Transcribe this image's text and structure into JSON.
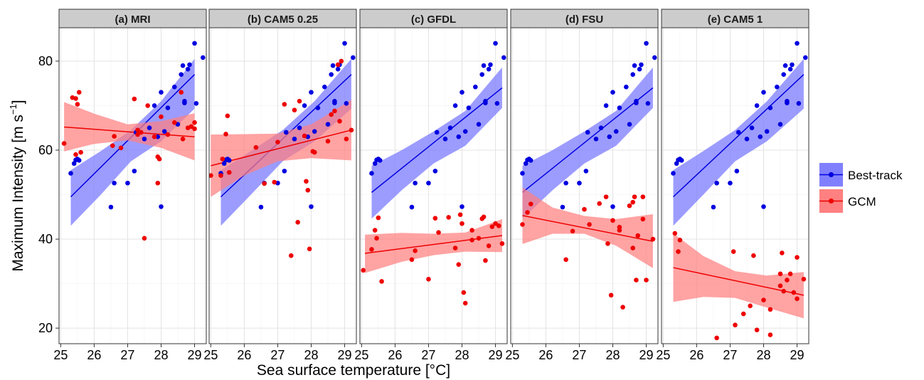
{
  "chart_data": {
    "type": "scatter",
    "xlabel": "Sea surface temperature [°C]",
    "ylabel": {
      "main": "Maximum Intensity [m s",
      "sup": "−1",
      "end": "]"
    },
    "xlim": [
      24.95,
      29.35
    ],
    "ylim": [
      16.5,
      87.5
    ],
    "x_ticks": [
      25,
      26,
      27,
      28,
      29
    ],
    "y_ticks": [
      20,
      40,
      60,
      80
    ],
    "grid": true,
    "legend_position": "right",
    "legend": [
      {
        "name": "Best-track",
        "color": "#0000e0",
        "band_color": "#8080ff"
      },
      {
        "name": "GCM",
        "color": "#ee0000",
        "band_color": "#ff8080"
      }
    ],
    "best_track_points": [
      [
        25.3,
        54.8
      ],
      [
        25.4,
        57.0
      ],
      [
        25.45,
        57.8
      ],
      [
        25.5,
        58.0
      ],
      [
        25.55,
        57.7
      ],
      [
        26.5,
        47.2
      ],
      [
        26.6,
        52.6
      ],
      [
        27.0,
        52.6
      ],
      [
        27.2,
        55.3
      ],
      [
        27.25,
        64.0
      ],
      [
        27.5,
        62.5
      ],
      [
        27.65,
        65.0
      ],
      [
        27.8,
        70.0
      ],
      [
        27.9,
        63.0
      ],
      [
        28.0,
        73.0
      ],
      [
        28.1,
        64.2
      ],
      [
        28.2,
        69.5
      ],
      [
        28.4,
        74.2
      ],
      [
        28.5,
        65.8
      ],
      [
        28.6,
        77.0
      ],
      [
        28.65,
        79.0
      ],
      [
        28.7,
        71.0
      ],
      [
        28.7,
        70.6
      ],
      [
        28.8,
        78.2
      ],
      [
        28.85,
        79.2
      ],
      [
        29.0,
        84.0
      ],
      [
        29.05,
        70.5
      ],
      [
        28.0,
        47.3
      ],
      [
        29.25,
        80.8
      ]
    ],
    "panels": [
      {
        "title": "(a) MRI",
        "best_fit": {
          "x": [
            25.3,
            29.0
          ],
          "y": [
            49.5,
            77.0
          ]
        },
        "best_band": {
          "x": [
            25.3,
            26.2,
            27.1,
            28.0,
            29.0
          ],
          "upper": [
            55.5,
            59.8,
            64.5,
            71.0,
            80.5
          ],
          "lower": [
            43.0,
            50.0,
            57.5,
            62.0,
            69.3
          ]
        },
        "gcm_fit": {
          "x": [
            25.1,
            29.0
          ],
          "y": [
            65.2,
            63.0
          ]
        },
        "gcm_band": {
          "x": [
            25.1,
            26.0,
            27.0,
            28.0,
            29.0
          ],
          "upper": [
            70.8,
            68.2,
            65.8,
            66.5,
            68.3
          ],
          "lower": [
            59.7,
            61.4,
            62.2,
            60.5,
            57.7
          ]
        },
        "gcm_points": [
          [
            25.1,
            61.5
          ],
          [
            25.35,
            71.8
          ],
          [
            25.45,
            71.6
          ],
          [
            25.55,
            73.0
          ],
          [
            25.5,
            70.3
          ],
          [
            25.45,
            59.0
          ],
          [
            25.6,
            59.5
          ],
          [
            26.6,
            63.1
          ],
          [
            26.55,
            61.0
          ],
          [
            26.8,
            60.5
          ],
          [
            27.2,
            71.5
          ],
          [
            27.3,
            64.5
          ],
          [
            27.3,
            63.5
          ],
          [
            27.4,
            64.0
          ],
          [
            27.5,
            40.2
          ],
          [
            27.6,
            70.0
          ],
          [
            27.8,
            63.0
          ],
          [
            27.9,
            58.5
          ],
          [
            27.95,
            58.0
          ],
          [
            28.0,
            67.5
          ],
          [
            28.2,
            63.5
          ],
          [
            27.9,
            52.6
          ],
          [
            28.4,
            66.2
          ],
          [
            28.6,
            73.0
          ],
          [
            28.65,
            62.5
          ],
          [
            28.8,
            65.0
          ],
          [
            28.9,
            65.3
          ],
          [
            29.0,
            66.2
          ],
          [
            29.0,
            64.8
          ]
        ]
      },
      {
        "title": "(b) CAM5 0.25",
        "best_fit": {
          "x": [
            25.3,
            29.2
          ],
          "y": [
            49.5,
            77.0
          ]
        },
        "best_band": {
          "x": [
            25.3,
            26.2,
            27.15,
            28.1,
            29.2
          ],
          "upper": [
            55.5,
            59.8,
            64.5,
            71.0,
            80.5
          ],
          "lower": [
            43.0,
            50.0,
            57.5,
            62.0,
            69.3
          ]
        },
        "gcm_fit": {
          "x": [
            25.0,
            29.2
          ],
          "y": [
            56.5,
            64.5
          ]
        },
        "gcm_band": {
          "x": [
            25.0,
            26.0,
            27.0,
            28.0,
            29.2
          ],
          "upper": [
            63.5,
            63.6,
            63.7,
            65.8,
            71.3
          ],
          "lower": [
            49.5,
            54.3,
            57.5,
            58.2,
            57.7
          ]
        },
        "gcm_points": [
          [
            25.0,
            54.3
          ],
          [
            25.3,
            54.3
          ],
          [
            25.35,
            58.0
          ],
          [
            25.45,
            63.6
          ],
          [
            25.5,
            67.7
          ],
          [
            25.55,
            55.0
          ],
          [
            26.35,
            60.6
          ],
          [
            26.6,
            52.5
          ],
          [
            26.9,
            52.8
          ],
          [
            27.0,
            61.8
          ],
          [
            27.4,
            36.3
          ],
          [
            27.5,
            69.0
          ],
          [
            27.6,
            43.8
          ],
          [
            27.65,
            71.0
          ],
          [
            27.8,
            63.2
          ],
          [
            27.85,
            53.0
          ],
          [
            27.9,
            51.0
          ],
          [
            27.95,
            37.8
          ],
          [
            28.05,
            59.7
          ],
          [
            28.1,
            59.5
          ],
          [
            28.5,
            62.0
          ],
          [
            28.6,
            68.0
          ],
          [
            28.7,
            68.8
          ],
          [
            28.8,
            79.2
          ],
          [
            28.9,
            80.0
          ],
          [
            29.05,
            62.5
          ],
          [
            29.2,
            64.5
          ],
          [
            27.2,
            70.3
          ],
          [
            28.85,
            66.5
          ]
        ]
      },
      {
        "title": "(c) GFDL",
        "best_fit": {
          "x": [
            25.3,
            29.2
          ],
          "y": [
            50.5,
            74.0
          ]
        },
        "best_band": {
          "x": [
            25.3,
            26.2,
            27.15,
            28.1,
            29.2
          ],
          "upper": [
            56.5,
            60.0,
            64.2,
            68.8,
            78.6
          ],
          "lower": [
            44.6,
            51.0,
            57.0,
            61.0,
            69.5
          ]
        },
        "gcm_fit": {
          "x": [
            25.1,
            29.2
          ],
          "y": [
            36.8,
            40.8
          ]
        },
        "gcm_band": {
          "x": [
            25.1,
            26.2,
            27.15,
            28.1,
            29.2
          ],
          "upper": [
            41.0,
            41.4,
            41.2,
            41.5,
            44.5
          ],
          "lower": [
            32.4,
            34.9,
            36.4,
            37.2,
            37.1
          ]
        },
        "gcm_points": [
          [
            25.05,
            33.0
          ],
          [
            25.3,
            37.7
          ],
          [
            25.4,
            42.0
          ],
          [
            25.5,
            44.8
          ],
          [
            25.6,
            30.5
          ],
          [
            25.45,
            40.2
          ],
          [
            26.5,
            35.4
          ],
          [
            26.6,
            37.4
          ],
          [
            27.0,
            31.0
          ],
          [
            27.2,
            44.7
          ],
          [
            27.3,
            41.5
          ],
          [
            27.6,
            44.9
          ],
          [
            27.8,
            38.0
          ],
          [
            27.9,
            34.3
          ],
          [
            27.95,
            45.5
          ],
          [
            28.0,
            43.5
          ],
          [
            28.05,
            28.0
          ],
          [
            28.1,
            25.6
          ],
          [
            28.3,
            42.0
          ],
          [
            28.3,
            39.8
          ],
          [
            28.6,
            44.6
          ],
          [
            28.65,
            45.0
          ],
          [
            28.7,
            35.2
          ],
          [
            28.8,
            38.5
          ],
          [
            28.9,
            42.8
          ],
          [
            29.0,
            43.5
          ],
          [
            29.1,
            43.0
          ],
          [
            29.2,
            39.0
          ],
          [
            28.5,
            40.2
          ]
        ]
      },
      {
        "title": "(d) FSU",
        "best_fit": {
          "x": [
            25.3,
            29.2
          ],
          "y": [
            50.5,
            74.0
          ]
        },
        "best_band": {
          "x": [
            25.3,
            26.2,
            27.15,
            28.1,
            29.2
          ],
          "upper": [
            56.5,
            60.0,
            64.2,
            68.8,
            78.6
          ],
          "lower": [
            44.6,
            51.0,
            57.0,
            61.0,
            69.5
          ]
        },
        "gcm_fit": {
          "x": [
            25.3,
            29.2
          ],
          "y": [
            45.3,
            39.5
          ]
        },
        "gcm_band": {
          "x": [
            25.3,
            26.2,
            27.15,
            28.1,
            29.2
          ],
          "upper": [
            51.6,
            47.1,
            45.2,
            44.5,
            45.6
          ],
          "lower": [
            38.9,
            41.2,
            41.2,
            38.5,
            33.5
          ]
        },
        "gcm_points": [
          [
            25.3,
            43.3
          ],
          [
            25.45,
            46.0
          ],
          [
            25.55,
            47.9
          ],
          [
            26.6,
            35.4
          ],
          [
            26.8,
            41.8
          ],
          [
            27.15,
            46.7
          ],
          [
            27.3,
            43.3
          ],
          [
            27.6,
            48.0
          ],
          [
            27.8,
            49.5
          ],
          [
            27.85,
            39.0
          ],
          [
            27.95,
            27.4
          ],
          [
            28.0,
            44.2
          ],
          [
            28.2,
            42.7
          ],
          [
            28.3,
            24.7
          ],
          [
            28.5,
            47.5
          ],
          [
            28.6,
            48.3
          ],
          [
            28.65,
            49.5
          ],
          [
            28.7,
            30.8
          ],
          [
            28.75,
            40.8
          ],
          [
            28.9,
            44.5
          ],
          [
            28.9,
            49.5
          ],
          [
            29.0,
            30.8
          ],
          [
            29.2,
            40.0
          ],
          [
            28.6,
            38.0
          ],
          [
            28.2,
            42.0
          ]
        ]
      },
      {
        "title": "(e) CAM5 1",
        "best_fit": {
          "x": [
            25.3,
            29.2
          ],
          "y": [
            49.5,
            77.0
          ]
        },
        "best_band": {
          "x": [
            25.3,
            26.2,
            27.15,
            28.1,
            29.2
          ],
          "upper": [
            55.5,
            59.8,
            64.5,
            71.0,
            80.5
          ],
          "lower": [
            43.0,
            50.0,
            57.5,
            62.0,
            69.3
          ]
        },
        "gcm_fit": {
          "x": [
            25.3,
            29.2
          ],
          "y": [
            33.6,
            27.4
          ]
        },
        "gcm_band": {
          "x": [
            25.3,
            26.2,
            27.15,
            28.1,
            29.2
          ],
          "upper": [
            41.3,
            36.2,
            32.8,
            31.8,
            32.6
          ],
          "lower": [
            25.9,
            27.0,
            26.8,
            24.6,
            22.2
          ]
        },
        "gcm_points": [
          [
            25.35,
            41.3
          ],
          [
            25.45,
            37.2
          ],
          [
            25.5,
            39.8
          ],
          [
            26.6,
            17.8
          ],
          [
            27.1,
            37.2
          ],
          [
            27.15,
            20.7
          ],
          [
            27.4,
            23.2
          ],
          [
            27.6,
            25.0
          ],
          [
            27.8,
            19.6
          ],
          [
            27.7,
            36.3
          ],
          [
            28.0,
            26.3
          ],
          [
            28.2,
            18.5
          ],
          [
            28.2,
            24.2
          ],
          [
            28.5,
            32.2
          ],
          [
            28.55,
            36.9
          ],
          [
            28.6,
            28.3
          ],
          [
            28.7,
            30.8
          ],
          [
            28.8,
            32.2
          ],
          [
            28.9,
            28.0
          ],
          [
            29.0,
            26.6
          ],
          [
            29.0,
            35.9
          ],
          [
            29.2,
            31.0
          ],
          [
            28.5,
            29.5
          ]
        ]
      }
    ]
  }
}
